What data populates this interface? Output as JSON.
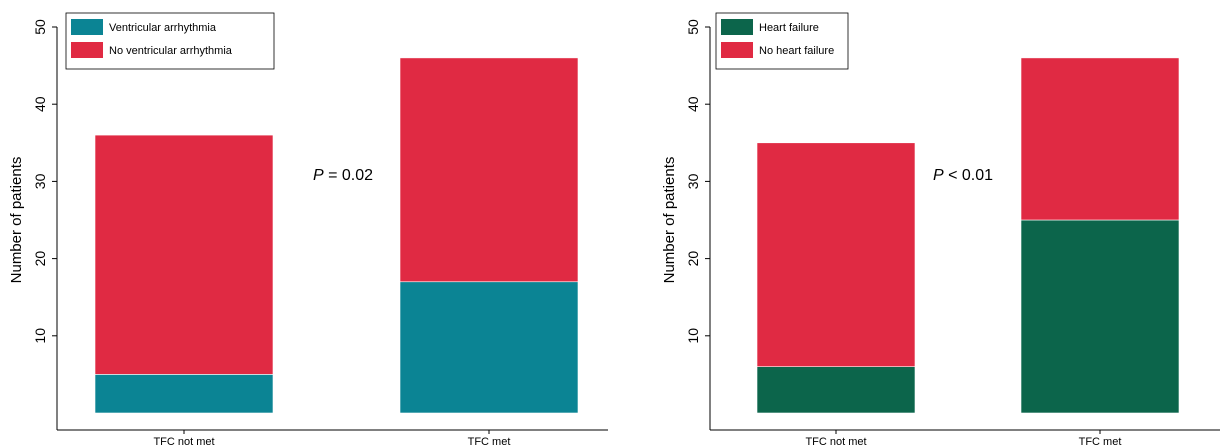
{
  "chart_data": [
    {
      "type": "bar",
      "stacked": true,
      "categories": [
        "TFC not met",
        "TFC met"
      ],
      "ylabel": "Number of patients",
      "xlabel": "",
      "ylim": [
        0,
        50
      ],
      "yticks": [
        10,
        20,
        30,
        40,
        50
      ],
      "grid": false,
      "legend_position": "top-left",
      "series": [
        {
          "name": "Ventricular arrhythmia",
          "values": [
            5,
            17
          ],
          "color": "#0b8494"
        },
        {
          "name": "No ventricular arrhythmia",
          "values": [
            31,
            29
          ],
          "color": "#e02a43"
        }
      ],
      "annotation": {
        "italic": "P",
        "rest": " = 0.02"
      }
    },
    {
      "type": "bar",
      "stacked": true,
      "categories": [
        "TFC not met",
        "TFC met"
      ],
      "ylabel": "Number of patients",
      "xlabel": "",
      "ylim": [
        0,
        50
      ],
      "yticks": [
        10,
        20,
        30,
        40,
        50
      ],
      "grid": false,
      "legend_position": "top-left",
      "series": [
        {
          "name": "Heart failure",
          "values": [
            6,
            25
          ],
          "color": "#0c654b"
        },
        {
          "name": "No heart failure",
          "values": [
            29,
            21
          ],
          "color": "#e02a43"
        }
      ],
      "annotation": {
        "italic": "P",
        "rest": " < 0.01"
      }
    }
  ]
}
